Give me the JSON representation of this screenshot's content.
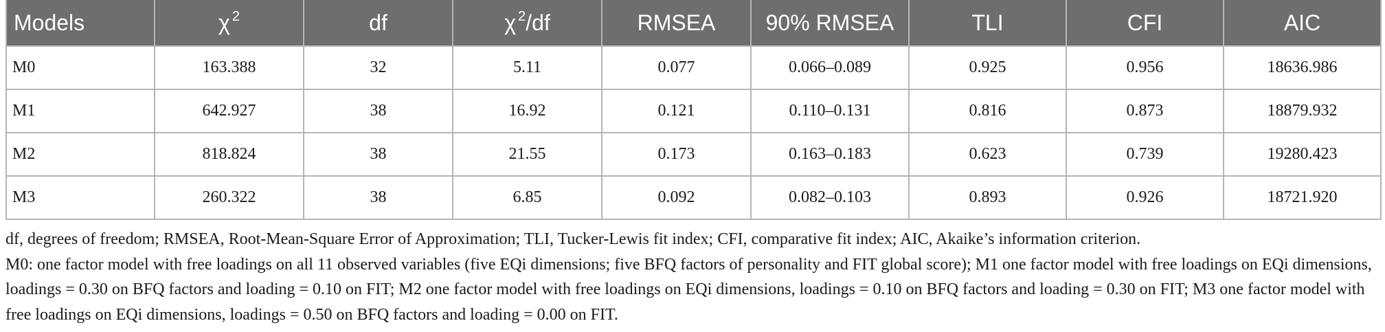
{
  "table": {
    "headers": [
      "Models",
      "χ",
      "df",
      "χ",
      "RMSEA",
      "90% RMSEA",
      "TLI",
      "CFI",
      "AIC"
    ],
    "header_suffix": {
      "chi2_sup": "2",
      "chi2df_sup": "2",
      "chi2df_rest": "/df"
    },
    "rows": [
      [
        "M0",
        "163.388",
        "32",
        "5.11",
        "0.077",
        "0.066–0.089",
        "0.925",
        "0.956",
        "18636.986"
      ],
      [
        "M1",
        "642.927",
        "38",
        "16.92",
        "0.121",
        "0.110–0.131",
        "0.816",
        "0.873",
        "18879.932"
      ],
      [
        "M2",
        "818.824",
        "38",
        "21.55",
        "0.173",
        "0.163–0.183",
        "0.623",
        "0.739",
        "19280.423"
      ],
      [
        "M3",
        "260.322",
        "38",
        "6.85",
        "0.092",
        "0.082–0.103",
        "0.893",
        "0.926",
        "18721.920"
      ]
    ]
  },
  "notes": {
    "abbreviations": "df, degrees of freedom; RMSEA, Root-Mean-Square Error of Approximation; TLI, Tucker-Lewis fit index; CFI, comparative fit index; AIC, Akaike’s information criterion.",
    "models": "M0: one factor model with free loadings on all 11 observed variables (five EQi dimensions; five BFQ factors of personality and FIT global score); M1 one factor model with free loadings on EQi dimensions, loadings = 0.30 on BFQ factors and loading = 0.10 on FIT; M2 one factor model with free loadings on EQi dimensions, loadings = 0.10 on BFQ factors and loading = 0.30 on FIT; M3 one factor model with free loadings on EQi dimensions, loadings = 0.50 on BFQ factors and loading = 0.00 on FIT."
  },
  "colors": {
    "header_bg": "#6e6e6e",
    "header_text": "#ffffff",
    "grid_line": "#b5b5b5",
    "body_text": "#1a1a1a"
  }
}
